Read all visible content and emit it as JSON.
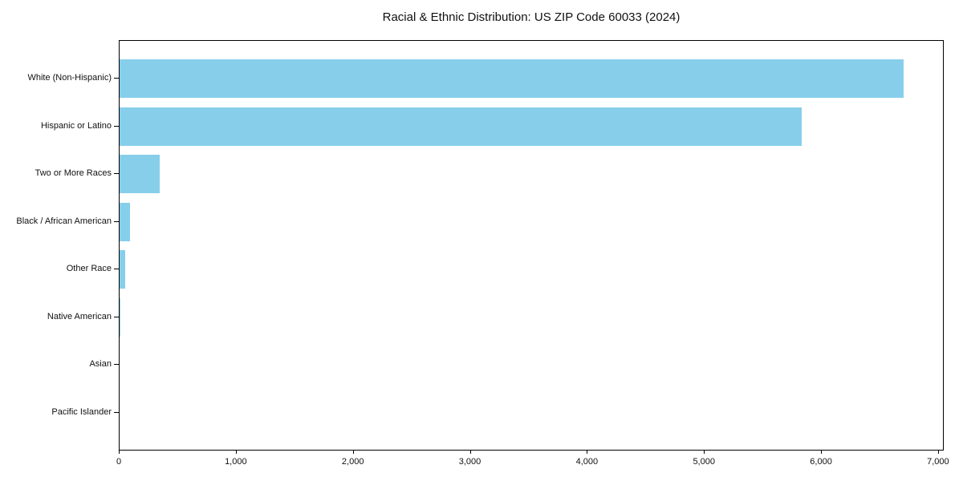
{
  "chart_data": {
    "type": "bar",
    "orientation": "horizontal",
    "title": "Racial & Ethnic Distribution: US ZIP Code 60033 (2024)",
    "categories": [
      "White (Non-Hispanic)",
      "Hispanic or Latino",
      "Two or More Races",
      "Black / African American",
      "Other Race",
      "Native American",
      "Asian",
      "Pacific Islander"
    ],
    "values": [
      6700,
      5825,
      345,
      90,
      45,
      8,
      0,
      0
    ],
    "xlabel": "",
    "ylabel": "",
    "xlim": [
      0,
      7035
    ],
    "x_ticks": [
      0,
      1000,
      2000,
      3000,
      4000,
      5000,
      6000,
      7000
    ],
    "x_tick_labels": [
      "0",
      "1,000",
      "2,000",
      "3,000",
      "4,000",
      "5,000",
      "6,000",
      "7,000"
    ],
    "bar_color": "#87CEEB",
    "axis_color": "#000000",
    "text_color": "#111111",
    "background_color": "#FFFFFF",
    "grid": false,
    "legend": false
  }
}
